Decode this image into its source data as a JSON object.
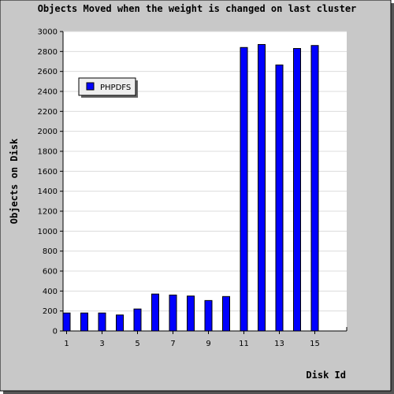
{
  "chart_data": {
    "type": "bar",
    "title": "Objects Moved when the weight is changed on last cluster",
    "xlabel": "Disk Id",
    "ylabel": "Objects on Disk",
    "x": [
      1,
      2,
      3,
      4,
      5,
      6,
      7,
      8,
      9,
      10,
      11,
      12,
      13,
      14,
      15
    ],
    "x_tick_labels": [
      "1",
      "3",
      "5",
      "7",
      "9",
      "11",
      "13",
      "15"
    ],
    "y_ticks": [
      0,
      200,
      400,
      600,
      800,
      1000,
      1200,
      1400,
      1600,
      1800,
      2000,
      2200,
      2400,
      2600,
      2800,
      3000
    ],
    "ylim": [
      0,
      3000
    ],
    "grid": true,
    "legend": {
      "position": "top-left",
      "entries": [
        "PHPDFS"
      ]
    },
    "series": [
      {
        "name": "PHPDFS",
        "color": "#0000ff",
        "values": [
          180,
          180,
          180,
          160,
          220,
          370,
          360,
          350,
          305,
          345,
          2840,
          2870,
          2665,
          2830,
          2860
        ]
      }
    ]
  }
}
